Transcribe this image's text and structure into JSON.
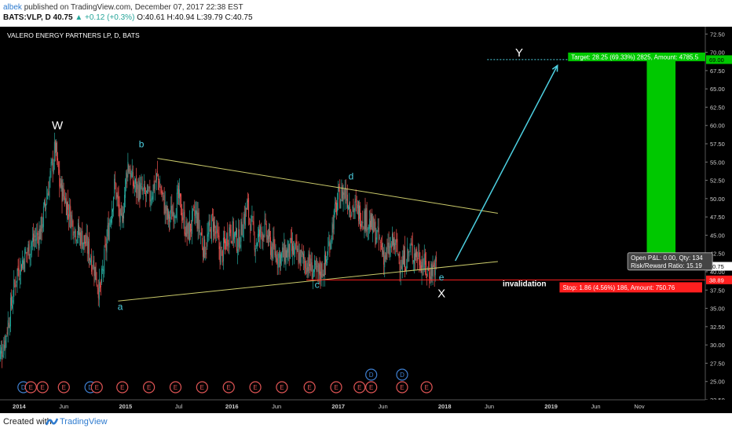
{
  "header": {
    "user": "albek",
    "published": "published on TradingView.com, December 07, 2017 22:38 EST",
    "symbol": "BATS:VLP, D",
    "last": "40.75",
    "change": "▲ +0.12 (+0.3%)",
    "ohlc": "O:40.61 H:40.94 L:39.79 C:40.75"
  },
  "footer": {
    "created": "Created with",
    "brand": "TradingView"
  },
  "colors": {
    "background": "#000000",
    "up_candle": "#26a69a",
    "down_candle": "#ef5350",
    "trendline": "#c9c96a",
    "wave_label": "#4dd0e1",
    "arrow": "#4dd0e1",
    "target_box": "#00c800",
    "stop_line": "#ff1f1f",
    "stop_label_bg": "#ff1f1f",
    "target_label_bg": "#00c800"
  },
  "chart_data": {
    "type": "line",
    "title": "VALERO ENERGY PARTNERS LP, D, BATS",
    "ylim": [
      22.5,
      73.5
    ],
    "y_ticks": [
      "72.50",
      "70.00",
      "67.50",
      "65.00",
      "62.50",
      "60.00",
      "57.50",
      "55.00",
      "52.50",
      "50.00",
      "47.50",
      "45.00",
      "42.50",
      "40.00",
      "37.50",
      "35.00",
      "32.50",
      "30.00",
      "27.50",
      "25.00",
      "22.50"
    ],
    "x_ticks": [
      "2014",
      "Jun",
      "2015",
      "Jul",
      "2016",
      "Jun",
      "2017",
      "Jun",
      "2018",
      "Jun",
      "2019",
      "Jun",
      "Nov"
    ],
    "x_ticks_t": [
      2014.0,
      2014.42,
      2015.0,
      2015.5,
      2016.0,
      2016.42,
      2017.0,
      2017.42,
      2018.0,
      2018.42,
      2019.0,
      2019.42,
      2019.83
    ],
    "xlim": [
      2013.82,
      2020.45
    ],
    "price_series": {
      "name": "VLP",
      "x": [
        2013.8,
        2013.87,
        2013.92,
        2013.98,
        2014.05,
        2014.12,
        2014.2,
        2014.28,
        2014.34,
        2014.38,
        2014.43,
        2014.52,
        2014.62,
        2014.7,
        2014.76,
        2014.83,
        2014.9,
        2014.96,
        2015.02,
        2015.07,
        2015.14,
        2015.22,
        2015.3,
        2015.4,
        2015.5,
        2015.58,
        2015.66,
        2015.74,
        2015.82,
        2015.9,
        2015.98,
        2016.06,
        2016.14,
        2016.22,
        2016.3,
        2016.38,
        2016.46,
        2016.55,
        2016.64,
        2016.72,
        2016.8,
        2016.88,
        2016.94,
        2017.0,
        2017.06,
        2017.12,
        2017.2,
        2017.28,
        2017.36,
        2017.44,
        2017.52,
        2017.6,
        2017.68,
        2017.76,
        2017.84,
        2017.92
      ],
      "y": [
        27.5,
        31.0,
        35.0,
        40.0,
        42.0,
        44.0,
        45.5,
        52.0,
        57.0,
        52.0,
        50.0,
        46.0,
        44.0,
        41.0,
        37.0,
        45.0,
        52.0,
        46.0,
        55.0,
        52.0,
        51.0,
        50.0,
        53.0,
        47.0,
        50.0,
        45.0,
        48.0,
        43.0,
        47.0,
        42.0,
        46.0,
        44.0,
        49.0,
        44.0,
        46.0,
        43.0,
        42.0,
        43.0,
        42.0,
        41.0,
        39.5,
        41.0,
        46.0,
        50.0,
        51.0,
        49.0,
        48.0,
        47.0,
        45.0,
        42.0,
        44.0,
        41.0,
        43.0,
        42.0,
        40.0,
        40.75
      ]
    },
    "annotations": [
      {
        "text": "W",
        "x": 2014.36,
        "y": 59.5,
        "color": "white",
        "size": 15
      },
      {
        "text": "b",
        "x": 2015.15,
        "y": 57.0,
        "color": "cyan",
        "size": 12
      },
      {
        "text": "a",
        "x": 2014.95,
        "y": 34.8,
        "color": "cyan",
        "size": 12
      },
      {
        "text": "c",
        "x": 2016.8,
        "y": 37.8,
        "color": "cyan",
        "size": 12
      },
      {
        "text": "d",
        "x": 2017.12,
        "y": 52.6,
        "color": "cyan",
        "size": 12
      },
      {
        "text": "e",
        "x": 2017.97,
        "y": 38.8,
        "color": "cyan",
        "size": 12
      },
      {
        "text": "X",
        "x": 2017.97,
        "y": 36.5,
        "color": "white",
        "size": 15
      },
      {
        "text": "Y",
        "x": 2018.7,
        "y": 69.4,
        "color": "white",
        "size": 15
      },
      {
        "text": "invalidation",
        "x": 2018.75,
        "y": 38.0,
        "color": "white",
        "size": 10
      }
    ],
    "trendlines": [
      {
        "x1": 2014.93,
        "y1": 36.0,
        "x2": 2018.5,
        "y2": 41.4
      },
      {
        "x1": 2015.3,
        "y1": 55.5,
        "x2": 2018.5,
        "y2": 48.0
      }
    ],
    "arrow": {
      "x1": 2018.1,
      "y1": 41.5,
      "x2": 2019.06,
      "y2": 68.2
    },
    "target_level": 69.0,
    "stop_level": 38.89,
    "position_box": {
      "x1": 2019.9,
      "x2": 2020.17,
      "entry": 40.75,
      "target": 69.0
    },
    "labels": {
      "target": "Target: 28.25 (69.33%) 2825, Amount: 4785.5",
      "stop": "Stop: 1.86 (4.56%) 186, Amount: 750.76",
      "open_pnl": "Open P&L: 0.00, Qty: 134",
      "risk_reward": "Risk/Reward Ratio: 15.19"
    },
    "price_tags": [
      {
        "text": "69.00",
        "value": 69.0,
        "bg": "#00c800",
        "fg": "#000000"
      },
      {
        "text": "40.75",
        "value": 40.75,
        "bg": "#ffffff",
        "fg": "#000000"
      },
      {
        "text": "38.89",
        "value": 38.89,
        "bg": "#ff1f1f",
        "fg": "#ffffff"
      }
    ],
    "events": [
      {
        "x": 2014.04,
        "kind": "D"
      },
      {
        "x": 2014.11,
        "kind": "E"
      },
      {
        "x": 2014.22,
        "kind": "E"
      },
      {
        "x": 2014.42,
        "kind": "E"
      },
      {
        "x": 2014.67,
        "kind": "D"
      },
      {
        "x": 2014.73,
        "kind": "E"
      },
      {
        "x": 2014.97,
        "kind": "E"
      },
      {
        "x": 2015.22,
        "kind": "E"
      },
      {
        "x": 2015.47,
        "kind": "E"
      },
      {
        "x": 2015.72,
        "kind": "E"
      },
      {
        "x": 2015.97,
        "kind": "E"
      },
      {
        "x": 2016.22,
        "kind": "E"
      },
      {
        "x": 2016.47,
        "kind": "E"
      },
      {
        "x": 2016.73,
        "kind": "E"
      },
      {
        "x": 2016.98,
        "kind": "E"
      },
      {
        "x": 2017.2,
        "kind": "E"
      },
      {
        "x": 2017.31,
        "kind": "E"
      },
      {
        "x": 2017.6,
        "kind": "E"
      },
      {
        "x": 2017.83,
        "kind": "E"
      }
    ],
    "events_top": [
      {
        "x": 2017.31,
        "kind": "D"
      },
      {
        "x": 2017.6,
        "kind": "D"
      }
    ]
  }
}
